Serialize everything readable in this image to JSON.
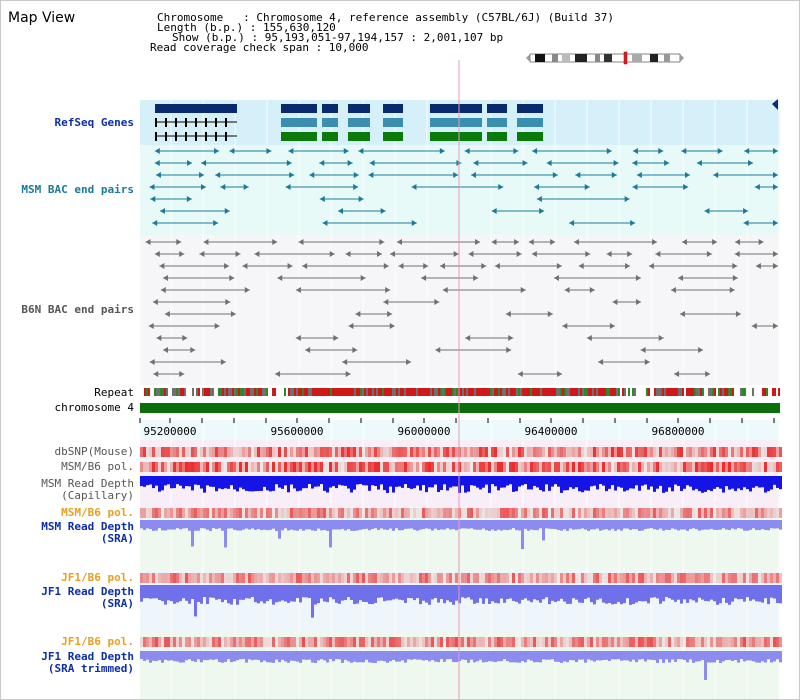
{
  "view_title": "Map View",
  "header": {
    "chromosome_key": "Chromosome   : Chromosome 4, reference assembly (C57BL/6J) (Build 37)",
    "length_key": "Length (b.p.) : 155,630,120",
    "show_key": "Show (b.p.) : 95,193,051-97,194,157 : 2,001,107 bp",
    "span_key": "Read coverage check span : 10,000"
  },
  "tracks": {
    "refseq": "RefSeq Genes",
    "msm_bac": "MSM BAC end pairs",
    "b6n_bac": "B6N BAC end pairs",
    "repeat": "Repeat",
    "chromosome": "chromosome 4",
    "dbsnp": "dbSNP(Mouse)",
    "msm_pol": "MSM/B6 pol.",
    "msm_depth_cap": "MSM Read Depth\n(Capillary)",
    "msm_pol2": "MSM/B6 pol.",
    "msm_depth_sra": "MSM Read Depth\n(SRA)",
    "jf1_pol": "JF1/B6 pol.",
    "jf1_depth_sra": "JF1 Read Depth\n(SRA)",
    "jf1_pol2": "JF1/B6 pol.",
    "jf1_depth_trim": "JF1 Read Depth\n(SRA trimmed)"
  },
  "axis_ticks": [
    "95200000",
    "95600000",
    "96000000",
    "96400000",
    "96800000"
  ],
  "colors": {
    "refseq_dark": "#0a2a6e",
    "refseq_mid": "#3a8fb0",
    "refseq_green": "#0a7a0a",
    "msm_bac": "#1a7a99",
    "b6n_bac": "#707070",
    "label_blue": "#0b2fa8",
    "label_teal": "#1a7a99",
    "label_gray": "#555555",
    "label_orange": "#e8a020",
    "chrom_green": "#0a6e0a"
  }
}
